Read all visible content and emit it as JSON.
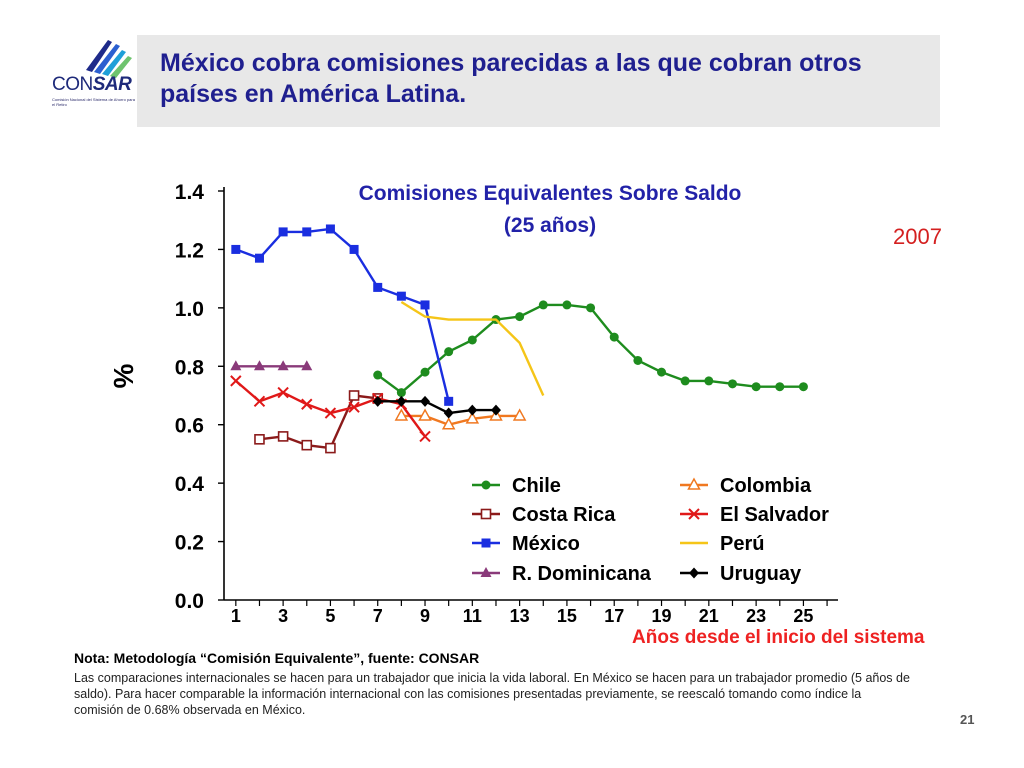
{
  "slide": {
    "title": "México cobra comisiones parecidas a las que cobran otros países en América Latina.",
    "year_tag": "2007",
    "page_number": "21",
    "logo": {
      "text_light": "CON",
      "text_bold": "SAR",
      "subtitle": "Comisión Nacional del Sistema de Ahorro para el Retiro"
    },
    "note_title": "Nota: Metodología “Comisión Equivalente”, fuente: CONSAR",
    "note_body": "Las comparaciones internacionales se hacen para un trabajador que inicia la vida laboral. En México se hacen para un trabajador promedio (5 años de saldo). Para hacer comparable la información internacional con las comisiones presentadas previamente, se reescaló tomando como índice la comisión de 0.68% observada en México."
  },
  "chart_data": {
    "type": "line",
    "title": "Comisiones Equivalentes Sobre Saldo",
    "subtitle": "(25 años)",
    "xlabel": "Años desde el inicio del sistema",
    "ylabel": "%",
    "xlim": [
      0.5,
      26
    ],
    "ylim": [
      0,
      1.4
    ],
    "x_ticks": [
      1,
      3,
      5,
      7,
      9,
      11,
      13,
      15,
      17,
      19,
      21,
      23,
      25
    ],
    "y_ticks": [
      0.0,
      0.2,
      0.4,
      0.6,
      0.8,
      1.0,
      1.2,
      1.4
    ],
    "y_tick_labels": [
      "0.0",
      "0.2",
      "0.4",
      "0.6",
      "0.8",
      "1.0",
      "1.2",
      "1.4"
    ],
    "legend_position": "bottom-right",
    "series": [
      {
        "name": "Chile",
        "color": "#1e8c1e",
        "marker": "circle",
        "x": [
          7,
          8,
          9,
          10,
          11,
          12,
          13,
          14,
          15,
          16,
          17,
          18,
          19,
          20,
          21,
          22,
          23,
          24,
          25
        ],
        "values": [
          0.77,
          0.71,
          0.78,
          0.85,
          0.89,
          0.96,
          0.97,
          1.01,
          1.01,
          1.0,
          0.9,
          0.82,
          0.78,
          0.75,
          0.75,
          0.74,
          0.73,
          0.73,
          0.73
        ]
      },
      {
        "name": "Costa Rica",
        "color": "#8b1a1a",
        "marker": "square-open",
        "x": [
          2,
          3,
          4,
          5,
          6,
          7
        ],
        "values": [
          0.55,
          0.56,
          0.53,
          0.52,
          0.7,
          0.69
        ]
      },
      {
        "name": "México",
        "color": "#1a2ee0",
        "marker": "square",
        "x": [
          1,
          2,
          3,
          4,
          5,
          6,
          7,
          8,
          9,
          10
        ],
        "values": [
          1.2,
          1.17,
          1.26,
          1.26,
          1.27,
          1.2,
          1.07,
          1.04,
          1.01,
          0.68
        ]
      },
      {
        "name": "R. Dominicana",
        "color": "#8a3a7a",
        "marker": "triangle",
        "x": [
          1,
          2,
          3,
          4
        ],
        "values": [
          0.8,
          0.8,
          0.8,
          0.8
        ]
      },
      {
        "name": "Colombia",
        "color": "#f07820",
        "marker": "triangle-open",
        "x": [
          8,
          9,
          10,
          11,
          12,
          13
        ],
        "values": [
          0.63,
          0.63,
          0.6,
          0.62,
          0.63,
          0.63
        ]
      },
      {
        "name": "El Salvador",
        "color": "#e01818",
        "marker": "x",
        "x": [
          1,
          2,
          3,
          4,
          5,
          6,
          7,
          8,
          9
        ],
        "values": [
          0.75,
          0.68,
          0.71,
          0.67,
          0.64,
          0.66,
          0.69,
          0.67,
          0.56
        ]
      },
      {
        "name": "Perú",
        "color": "#f5c518",
        "marker": "none",
        "x": [
          8,
          9,
          10,
          11,
          12,
          13,
          14
        ],
        "values": [
          1.02,
          0.97,
          0.96,
          0.96,
          0.96,
          0.88,
          0.7
        ]
      },
      {
        "name": "Uruguay",
        "color": "#000000",
        "marker": "diamond",
        "x": [
          7,
          8,
          9,
          10,
          11,
          12
        ],
        "values": [
          0.68,
          0.68,
          0.68,
          0.64,
          0.65,
          0.65
        ]
      }
    ],
    "legend_columns": [
      [
        "Chile",
        "Costa Rica",
        "México",
        "R. Dominicana"
      ],
      [
        "Colombia",
        "El Salvador",
        "Perú",
        "Uruguay"
      ]
    ]
  }
}
